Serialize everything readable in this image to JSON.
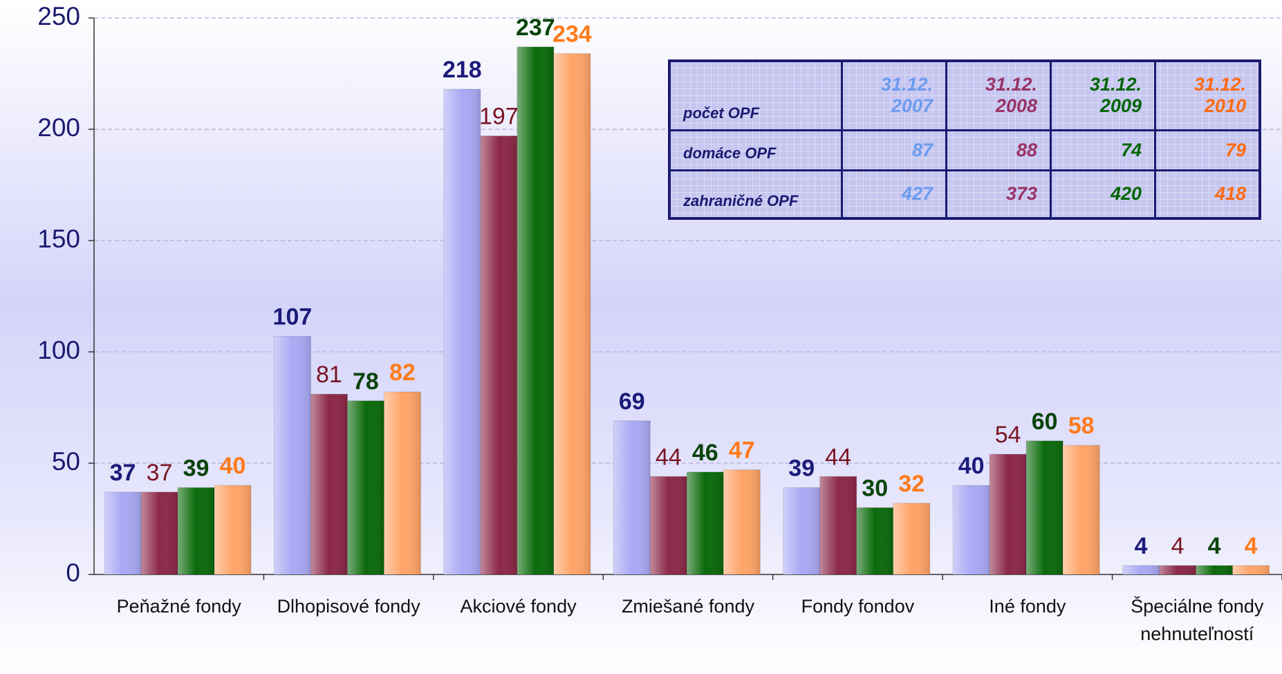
{
  "chart_data": {
    "type": "bar",
    "categories": [
      "Peňažné fondy",
      "Dlhopisové fondy",
      "Akciové fondy",
      "Zmiešané fondy",
      "Fondy fondov",
      "Iné fondy",
      "Špeciálne fondy nehnuteľností"
    ],
    "series": [
      {
        "color": "#a9a9f5",
        "label_color": "#1b1b7a",
        "bold": true,
        "values": [
          37,
          107,
          218,
          69,
          39,
          40,
          4
        ]
      },
      {
        "color": "#8c2848",
        "label_color": "#7a1424",
        "bold": false,
        "values": [
          37,
          81,
          197,
          44,
          44,
          54,
          4
        ]
      },
      {
        "color": "#0b6a0b",
        "label_color": "#0a440a",
        "bold": true,
        "values": [
          39,
          78,
          237,
          46,
          30,
          60,
          4
        ]
      },
      {
        "color": "#ffa468",
        "label_color": "#ff7a1a",
        "bold": true,
        "values": [
          40,
          82,
          234,
          47,
          32,
          58,
          4
        ]
      }
    ],
    "ylim": [
      0,
      250
    ],
    "yticks": [
      0,
      50,
      100,
      150,
      200,
      250
    ],
    "grid": true
  },
  "table": {
    "corner": "počet OPF",
    "columns": [
      {
        "lines": [
          "31.12.",
          "2007"
        ],
        "color": "#6b9bf0"
      },
      {
        "lines": [
          "31.12.",
          "2008"
        ],
        "color": "#993366"
      },
      {
        "lines": [
          "31.12.",
          "2009"
        ],
        "color": "#006600"
      },
      {
        "lines": [
          "31.12.",
          "2010"
        ],
        "color": "#ff6a10"
      }
    ],
    "rows": [
      {
        "label": "domáce OPF",
        "values": [
          "87",
          "88",
          "74",
          "79"
        ]
      },
      {
        "label": "zahraničné OPF",
        "values": [
          "427",
          "373",
          "420",
          "418"
        ]
      }
    ]
  }
}
